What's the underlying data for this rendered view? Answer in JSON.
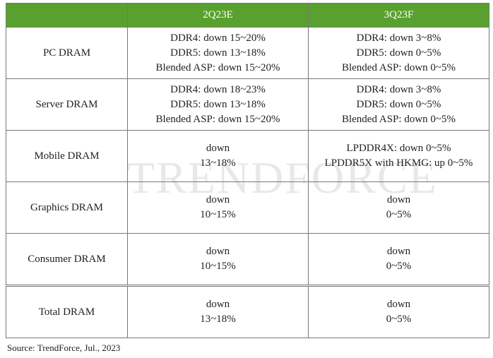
{
  "table": {
    "columns": [
      "2Q23E",
      "3Q23F"
    ],
    "rows": [
      {
        "label": "PC DRAM",
        "cells": [
          [
            "DDR4: down 15~20%",
            "DDR5: down 13~18%",
            "Blended ASP: down 15~20%"
          ],
          [
            "DDR4: down 3~8%",
            "DDR5: down 0~5%",
            "Blended ASP: down 0~5%"
          ]
        ]
      },
      {
        "label": "Server DRAM",
        "cells": [
          [
            "DDR4: down 18~23%",
            "DDR5: down 13~18%",
            "Blended ASP: down 15~20%"
          ],
          [
            "DDR4: down 3~8%",
            "DDR5: down 0~5%",
            "Blended ASP: down 0~5%"
          ]
        ]
      },
      {
        "label": "Mobile DRAM",
        "cells": [
          [
            "down",
            "13~18%"
          ],
          [
            "LPDDR4X: down 0~5%",
            "LPDDR5X with HKMG: up 0~5%"
          ]
        ]
      },
      {
        "label": "Graphics DRAM",
        "cells": [
          [
            "down",
            "10~15%"
          ],
          [
            "down",
            "0~5%"
          ]
        ]
      },
      {
        "label": "Consumer DRAM",
        "cells": [
          [
            "down",
            "10~15%"
          ],
          [
            "down",
            "0~5%"
          ]
        ]
      },
      {
        "label": "Total DRAM",
        "cells": [
          [
            "down",
            "13~18%"
          ],
          [
            "down",
            "0~5%"
          ]
        ]
      }
    ]
  },
  "watermark": "TRENDFORCE",
  "source": "Source: TrendForce, Jul., 2023"
}
